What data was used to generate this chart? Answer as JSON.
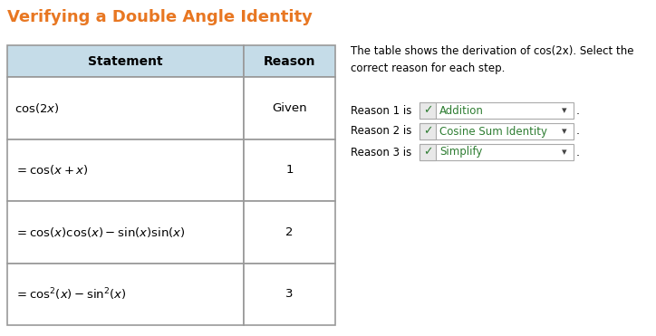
{
  "title": "Verifying a Double Angle Identity",
  "title_color": "#E87722",
  "title_fontsize": 13,
  "background_color": "#ffffff",
  "table_header_bg": "#c5dce8",
  "table_cell_bg": "#ffffff",
  "table_border_color": "#999999",
  "col_headers": [
    "Statement",
    "Reason"
  ],
  "math_statements": [
    "cos(2x)",
    "= cos(x + x)",
    "= cos(x)cos(x) – sin(x)sin(x)",
    "= cos²(x) – sin²(x)"
  ],
  "reasons": [
    "Given",
    "1",
    "2",
    "3"
  ],
  "right_text": "The table shows the derivation of cos(2x). Select the\ncorrect reason for each step.",
  "dropdown_labels": [
    "Reason 1 is",
    "Reason 2 is",
    "Reason 3 is"
  ],
  "dropdown_values": [
    "Addition",
    "Cosine Sum Identity",
    "Simplify"
  ],
  "dropdown_bg": "#ffffff",
  "dropdown_border": "#aaaaaa",
  "check_color": "#2e7d32",
  "dropdown_text_color": "#2e7d32",
  "body_text_color": "#000000",
  "table_text_color": "#000000",
  "page_bg": "#f5f5f5"
}
